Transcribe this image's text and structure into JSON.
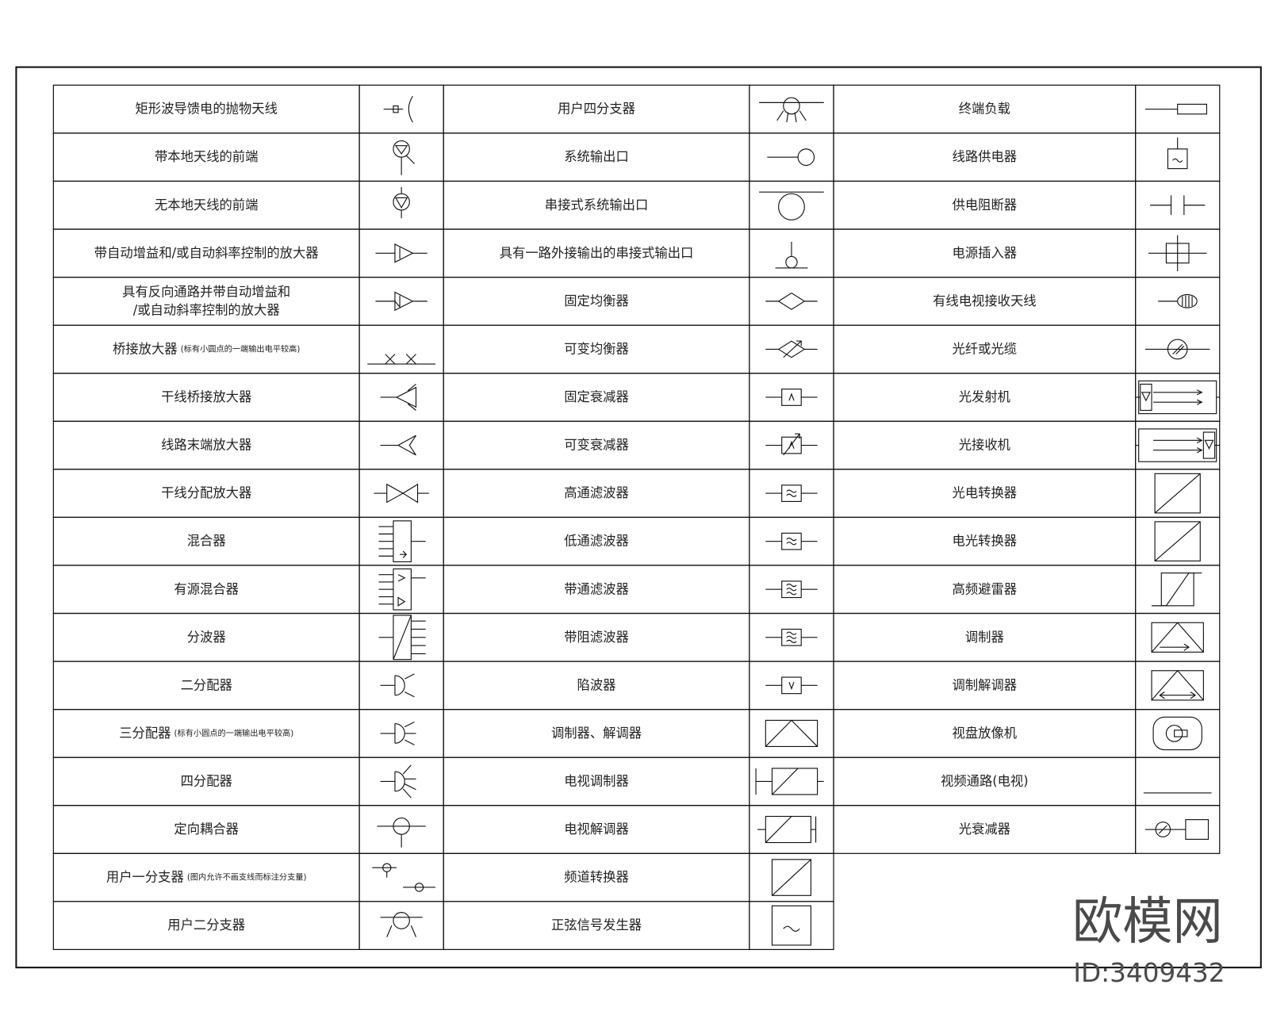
{
  "groups": [
    {
      "rows": [
        {
          "lines": [
            "矩形波导馈电的抛物天线"
          ]
        },
        {
          "lines": [
            "带本地天线的前端"
          ]
        },
        {
          "lines": [
            "无本地天线的前端"
          ]
        },
        {
          "lines": [
            "带自动增益和/或自动斜率控制的放大器"
          ]
        },
        {
          "lines": [
            "具有反向通路并带自动增益和",
            "/或自动斜率控制的放大器"
          ]
        },
        {
          "lines": [
            "桥接放大器"
          ],
          "note": "(标有小圆点的一端输出电平较高)"
        },
        {
          "lines": [
            "干线桥接放大器"
          ]
        },
        {
          "lines": [
            "线路末端放大器"
          ]
        },
        {
          "lines": [
            "干线分配放大器"
          ]
        },
        {
          "lines": [
            "混合器"
          ]
        },
        {
          "lines": [
            "有源混合器"
          ]
        },
        {
          "lines": [
            "分波器"
          ]
        },
        {
          "lines": [
            "二分配器"
          ]
        },
        {
          "lines": [
            "三分配器"
          ],
          "note": "(标有小圆点的一端输出电平较高)"
        },
        {
          "lines": [
            "四分配器"
          ]
        },
        {
          "lines": [
            "定向耦合器"
          ]
        },
        {
          "lines": [
            "用户一分支器"
          ],
          "note": "(图内允许不画支线而标注分支量)"
        },
        {
          "lines": [
            "用户二分支器"
          ]
        }
      ]
    },
    {
      "rows": [
        {
          "lines": [
            "用户四分支器"
          ]
        },
        {
          "lines": [
            "系统输出口"
          ]
        },
        {
          "lines": [
            "串接式系统输出口"
          ]
        },
        {
          "lines": [
            "具有一路外接输出的串接式输出口"
          ]
        },
        {
          "lines": [
            "固定均衡器"
          ]
        },
        {
          "lines": [
            "可变均衡器"
          ]
        },
        {
          "lines": [
            "固定衰减器"
          ]
        },
        {
          "lines": [
            "可变衰减器"
          ]
        },
        {
          "lines": [
            "高通滤波器"
          ]
        },
        {
          "lines": [
            "低通滤波器"
          ]
        },
        {
          "lines": [
            "带通滤波器"
          ]
        },
        {
          "lines": [
            "带阻滤波器"
          ]
        },
        {
          "lines": [
            "陷波器"
          ]
        },
        {
          "lines": [
            "调制器、解调器"
          ]
        },
        {
          "lines": [
            "电视调制器"
          ]
        },
        {
          "lines": [
            "电视解调器"
          ]
        },
        {
          "lines": [
            "频道转换器"
          ]
        },
        {
          "lines": [
            "正弦信号发生器"
          ]
        }
      ]
    },
    {
      "rows": [
        {
          "lines": [
            "终端负载"
          ]
        },
        {
          "lines": [
            "线路供电器"
          ]
        },
        {
          "lines": [
            "供电阻断器"
          ]
        },
        {
          "lines": [
            "电源插入器"
          ]
        },
        {
          "lines": [
            "有线电视接收天线"
          ]
        },
        {
          "lines": [
            "光纤或光缆"
          ]
        },
        {
          "lines": [
            "光发射机"
          ]
        },
        {
          "lines": [
            "光接收机"
          ]
        },
        {
          "lines": [
            "光电转换器"
          ]
        },
        {
          "lines": [
            "电光转换器"
          ]
        },
        {
          "lines": [
            "高频避雷器"
          ]
        },
        {
          "lines": [
            "调制器"
          ]
        },
        {
          "lines": [
            "调制解调器"
          ]
        },
        {
          "lines": [
            "视盘放像机"
          ]
        },
        {
          "lines": [
            "视频通路(电视)"
          ]
        },
        {
          "lines": [
            "光衰减器"
          ]
        }
      ]
    }
  ],
  "watermark": {
    "brand": "欧模网",
    "id": "ID:3409432"
  }
}
